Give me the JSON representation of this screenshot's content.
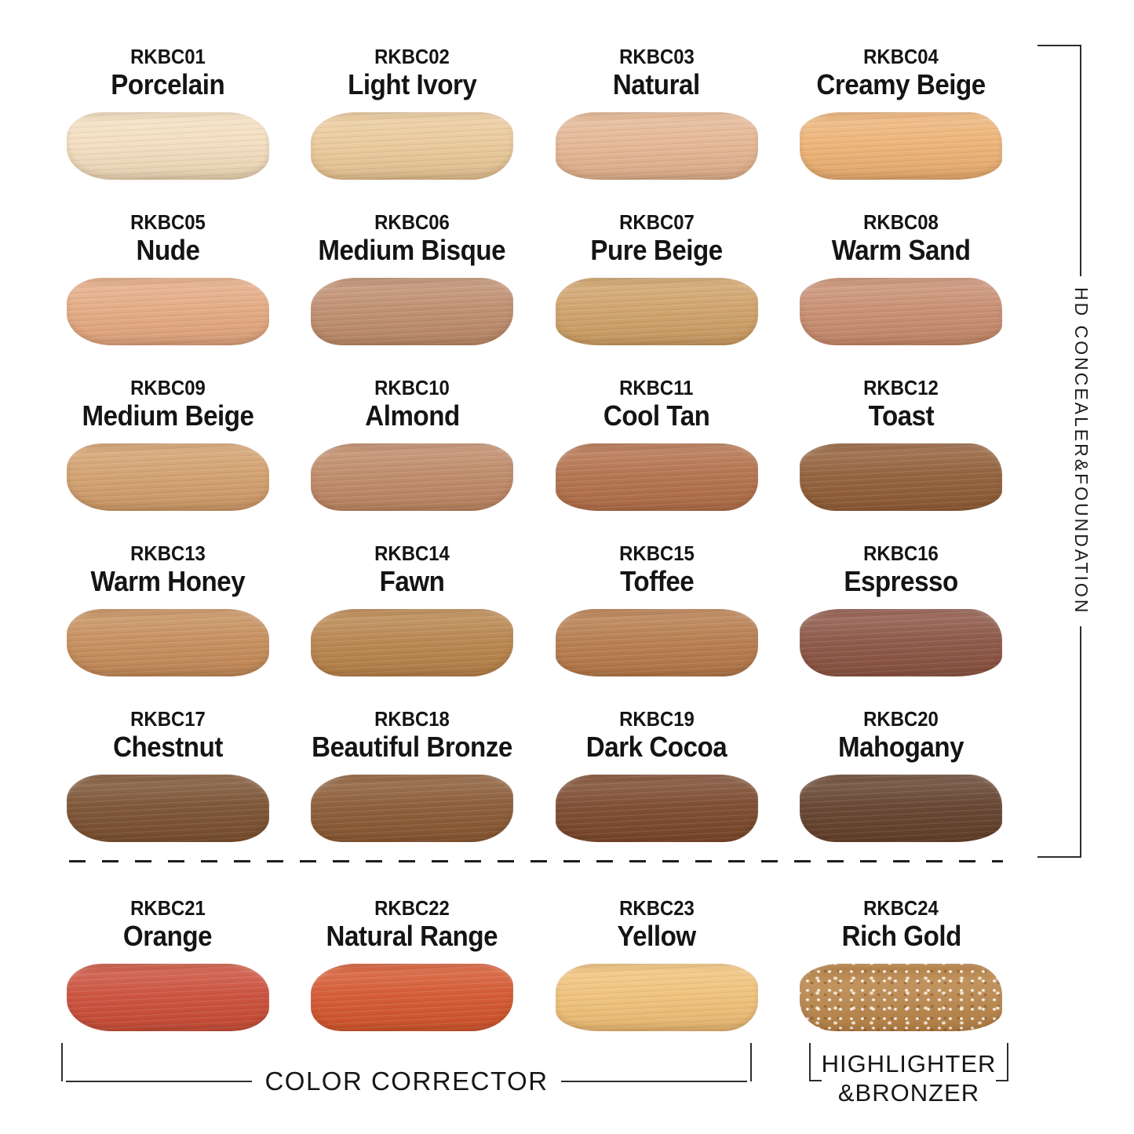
{
  "labels": {
    "right_bracket": "HD CONCEALER&FOUNDATION",
    "color_corrector": "COLOR CORRECTOR",
    "highlighter_line1": "HIGHLIGHTER",
    "highlighter_line2": "&BRONZER"
  },
  "style": {
    "background": "#ffffff",
    "line_color": "#2e2e2e",
    "text_color": "#141414"
  },
  "chart_data": {
    "type": "table",
    "columns": [
      "code",
      "name",
      "swatch_color"
    ],
    "groups": [
      {
        "label": "HD CONCEALER&FOUNDATION",
        "shades": "RKBC01-RKBC20",
        "position": "right-bracket"
      },
      {
        "label": "COLOR CORRECTOR",
        "shades": "RKBC21-RKBC23",
        "position": "bottom-bracket"
      },
      {
        "label": "HIGHLIGHTER &BRONZER",
        "shades": "RKBC24",
        "position": "bottom-bracket"
      }
    ],
    "shades": [
      {
        "code": "RKBC01",
        "name": "Porcelain",
        "color": "#f3dfc0"
      },
      {
        "code": "RKBC02",
        "name": "Light Ivory",
        "color": "#eaca9b"
      },
      {
        "code": "RKBC03",
        "name": "Natural",
        "color": "#e4b794"
      },
      {
        "code": "RKBC04",
        "name": "Creamy Beige",
        "color": "#edb376"
      },
      {
        "code": "RKBC05",
        "name": "Nude",
        "color": "#e4aa83"
      },
      {
        "code": "RKBC06",
        "name": "Medium Bisque",
        "color": "#be8e6f"
      },
      {
        "code": "RKBC07",
        "name": "Pure Beige",
        "color": "#cfa269"
      },
      {
        "code": "RKBC08",
        "name": "Warm Sand",
        "color": "#c88e71"
      },
      {
        "code": "RKBC09",
        "name": "Medium Beige",
        "color": "#d2a06e"
      },
      {
        "code": "RKBC10",
        "name": "Almond",
        "color": "#be8a68"
      },
      {
        "code": "RKBC11",
        "name": "Cool Tan",
        "color": "#b3714c"
      },
      {
        "code": "RKBC12",
        "name": "Toast",
        "color": "#915f39"
      },
      {
        "code": "RKBC13",
        "name": "Warm Honey",
        "color": "#c68e5c"
      },
      {
        "code": "RKBC14",
        "name": "Fawn",
        "color": "#b8854d"
      },
      {
        "code": "RKBC15",
        "name": "Toffee",
        "color": "#b67c4d"
      },
      {
        "code": "RKBC16",
        "name": "Espresso",
        "color": "#8b5545"
      },
      {
        "code": "RKBC17",
        "name": "Chestnut",
        "color": "#7b5233"
      },
      {
        "code": "RKBC18",
        "name": "Beautiful Bronze",
        "color": "#8a5b36"
      },
      {
        "code": "RKBC19",
        "name": "Dark Cocoa",
        "color": "#7b492e"
      },
      {
        "code": "RKBC20",
        "name": "Mahogany",
        "color": "#63422e"
      },
      {
        "code": "RKBC21",
        "name": "Orange",
        "color": "#cb4f3b"
      },
      {
        "code": "RKBC22",
        "name": "Natural Range",
        "color": "#d4572f"
      },
      {
        "code": "RKBC23",
        "name": "Yellow",
        "color": "#f0c27a"
      },
      {
        "code": "RKBC24",
        "name": "Rich Gold",
        "color": "#b98549",
        "sparkle": true
      }
    ]
  }
}
